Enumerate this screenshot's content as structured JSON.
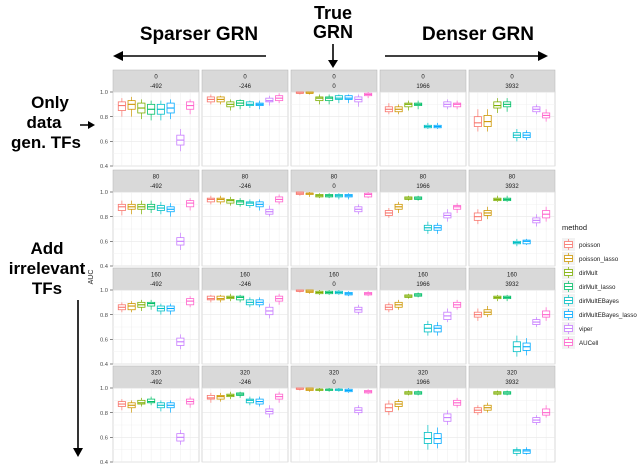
{
  "annotations": {
    "sparser": "Sparser GRN",
    "true_grn_line1": "True",
    "true_grn_line2": "GRN",
    "denser": "Denser GRN",
    "only_line1": "Only",
    "only_line2": "data",
    "only_line3": "gen. TFs",
    "add_line1": "Add",
    "add_line2": "irrelevant",
    "add_line3": "TFs"
  },
  "chart_data": {
    "type": "boxplot",
    "ylabel": "AUC",
    "ylim": [
      0.4,
      1.0
    ],
    "yticks": [
      0.4,
      0.6,
      0.8,
      1.0
    ],
    "ytick_labels": [
      "0.4",
      "0.6",
      "0.8",
      "1.0"
    ],
    "legend": {
      "title": "method",
      "placement": "right",
      "entries": [
        "poisson",
        "poisson_lasso",
        "dirMult",
        "dirMult_lasso",
        "dirMultEBayes",
        "dirMultEBayes_lasso",
        "viper",
        "AUCell"
      ]
    },
    "method_colors": [
      "#F8766D",
      "#CD9600",
      "#7CAE00",
      "#00BE67",
      "#00BFC4",
      "#00A9FF",
      "#C77CFF",
      "#FF61CC"
    ],
    "facet_rows": [
      "0",
      "80",
      "160",
      "320"
    ],
    "facet_cols": [
      "-492",
      "-246",
      "0",
      "1966",
      "3932"
    ],
    "panels": [
      [
        [
          [
            0.8,
            0.85,
            0.89,
            0.92,
            0.95
          ],
          [
            0.8,
            0.86,
            0.9,
            0.93,
            0.96
          ],
          [
            0.78,
            0.83,
            0.87,
            0.91,
            0.94
          ],
          [
            0.77,
            0.82,
            0.86,
            0.9,
            0.93
          ],
          [
            0.77,
            0.82,
            0.86,
            0.9,
            0.93
          ],
          [
            0.78,
            0.83,
            0.87,
            0.91,
            0.94
          ],
          [
            0.52,
            0.57,
            0.61,
            0.65,
            0.7
          ],
          [
            0.82,
            0.86,
            0.89,
            0.92,
            0.94
          ]
        ],
        [
          [
            0.9,
            0.92,
            0.94,
            0.96,
            0.98
          ],
          [
            0.9,
            0.92,
            0.94,
            0.96,
            0.97
          ],
          [
            0.85,
            0.88,
            0.9,
            0.92,
            0.94
          ],
          [
            0.86,
            0.89,
            0.91,
            0.93,
            0.94
          ],
          [
            0.87,
            0.89,
            0.9,
            0.92,
            0.93
          ],
          [
            0.86,
            0.89,
            0.9,
            0.91,
            0.93
          ],
          [
            0.89,
            0.92,
            0.93,
            0.95,
            0.97
          ],
          [
            0.91,
            0.93,
            0.95,
            0.97,
            0.99
          ]
        ],
        [
          [
            0.98,
            0.99,
            0.99,
            1.0,
            1.0
          ],
          [
            0.98,
            0.99,
            0.99,
            1.0,
            1.0
          ],
          [
            0.9,
            0.93,
            0.95,
            0.96,
            0.98
          ],
          [
            0.9,
            0.93,
            0.95,
            0.96,
            0.98
          ],
          [
            0.91,
            0.94,
            0.95,
            0.97,
            0.98
          ],
          [
            0.91,
            0.94,
            0.95,
            0.97,
            0.98
          ],
          [
            0.88,
            0.92,
            0.94,
            0.96,
            0.98
          ],
          [
            0.95,
            0.97,
            0.98,
            0.99,
            1.0
          ]
        ],
        [
          [
            0.82,
            0.84,
            0.86,
            0.88,
            0.91
          ],
          [
            0.82,
            0.84,
            0.86,
            0.88,
            0.9
          ],
          [
            0.85,
            0.88,
            0.9,
            0.91,
            0.93
          ],
          [
            0.86,
            0.89,
            0.9,
            0.91,
            0.93
          ],
          [
            0.7,
            0.71,
            0.72,
            0.73,
            0.75
          ],
          [
            0.7,
            0.71,
            0.72,
            0.73,
            0.75
          ],
          [
            0.86,
            0.88,
            0.9,
            0.92,
            0.94
          ],
          [
            0.86,
            0.88,
            0.9,
            0.91,
            0.93
          ]
        ],
        [
          [
            0.68,
            0.72,
            0.75,
            0.8,
            0.86
          ],
          [
            0.68,
            0.72,
            0.76,
            0.81,
            0.86
          ],
          [
            0.83,
            0.87,
            0.89,
            0.92,
            0.95
          ],
          [
            0.84,
            0.88,
            0.9,
            0.92,
            0.95
          ],
          [
            0.6,
            0.63,
            0.65,
            0.67,
            0.7
          ],
          [
            0.61,
            0.63,
            0.65,
            0.67,
            0.69
          ],
          [
            0.82,
            0.84,
            0.86,
            0.88,
            0.9
          ],
          [
            0.76,
            0.79,
            0.81,
            0.83,
            0.86
          ]
        ]
      ],
      [
        [
          [
            0.81,
            0.85,
            0.88,
            0.9,
            0.93
          ],
          [
            0.82,
            0.86,
            0.88,
            0.9,
            0.93
          ],
          [
            0.82,
            0.86,
            0.88,
            0.9,
            0.93
          ],
          [
            0.83,
            0.86,
            0.88,
            0.9,
            0.93
          ],
          [
            0.82,
            0.85,
            0.87,
            0.89,
            0.92
          ],
          [
            0.8,
            0.84,
            0.86,
            0.88,
            0.91
          ],
          [
            0.53,
            0.57,
            0.6,
            0.63,
            0.67
          ],
          [
            0.85,
            0.88,
            0.91,
            0.93,
            0.95
          ]
        ],
        [
          [
            0.9,
            0.92,
            0.94,
            0.95,
            0.97
          ],
          [
            0.9,
            0.92,
            0.94,
            0.95,
            0.97
          ],
          [
            0.89,
            0.91,
            0.93,
            0.94,
            0.96
          ],
          [
            0.88,
            0.9,
            0.92,
            0.93,
            0.95
          ],
          [
            0.87,
            0.89,
            0.91,
            0.92,
            0.94
          ],
          [
            0.85,
            0.88,
            0.9,
            0.92,
            0.94
          ],
          [
            0.8,
            0.82,
            0.84,
            0.86,
            0.89
          ],
          [
            0.9,
            0.92,
            0.94,
            0.96,
            0.98
          ]
        ],
        [
          [
            0.97,
            0.98,
            0.99,
            1.0,
            1.0
          ],
          [
            0.96,
            0.98,
            0.99,
            0.99,
            1.0
          ],
          [
            0.95,
            0.96,
            0.97,
            0.98,
            0.99
          ],
          [
            0.95,
            0.96,
            0.97,
            0.98,
            0.99
          ],
          [
            0.94,
            0.96,
            0.97,
            0.98,
            0.99
          ],
          [
            0.94,
            0.96,
            0.97,
            0.98,
            0.99
          ],
          [
            0.82,
            0.84,
            0.86,
            0.88,
            0.9
          ],
          [
            0.95,
            0.96,
            0.98,
            0.99,
            1.0
          ]
        ],
        [
          [
            0.79,
            0.81,
            0.83,
            0.85,
            0.87
          ],
          [
            0.83,
            0.86,
            0.88,
            0.9,
            0.92
          ],
          [
            0.93,
            0.94,
            0.95,
            0.96,
            0.97
          ],
          [
            0.93,
            0.94,
            0.95,
            0.96,
            0.97
          ],
          [
            0.66,
            0.69,
            0.71,
            0.73,
            0.76
          ],
          [
            0.66,
            0.69,
            0.71,
            0.73,
            0.75
          ],
          [
            0.76,
            0.79,
            0.81,
            0.83,
            0.86
          ],
          [
            0.83,
            0.86,
            0.88,
            0.89,
            0.91
          ]
        ],
        [
          [
            0.74,
            0.77,
            0.8,
            0.83,
            0.86
          ],
          [
            0.78,
            0.81,
            0.83,
            0.85,
            0.88
          ],
          [
            0.92,
            0.93,
            0.94,
            0.95,
            0.97
          ],
          [
            0.92,
            0.93,
            0.94,
            0.95,
            0.97
          ],
          [
            0.56,
            0.58,
            0.59,
            0.6,
            0.62
          ],
          [
            0.57,
            0.58,
            0.6,
            0.61,
            0.62
          ],
          [
            0.72,
            0.75,
            0.77,
            0.79,
            0.82
          ],
          [
            0.76,
            0.79,
            0.82,
            0.85,
            0.88
          ]
        ]
      ],
      [
        [
          [
            0.82,
            0.84,
            0.86,
            0.88,
            0.9
          ],
          [
            0.82,
            0.84,
            0.87,
            0.89,
            0.91
          ],
          [
            0.83,
            0.86,
            0.88,
            0.9,
            0.92
          ],
          [
            0.84,
            0.87,
            0.89,
            0.9,
            0.92
          ],
          [
            0.8,
            0.83,
            0.85,
            0.87,
            0.89
          ],
          [
            0.8,
            0.83,
            0.85,
            0.87,
            0.89
          ],
          [
            0.52,
            0.55,
            0.58,
            0.61,
            0.64
          ],
          [
            0.86,
            0.88,
            0.91,
            0.93,
            0.95
          ]
        ],
        [
          [
            0.9,
            0.92,
            0.93,
            0.95,
            0.96
          ],
          [
            0.9,
            0.92,
            0.93,
            0.95,
            0.96
          ],
          [
            0.91,
            0.93,
            0.94,
            0.95,
            0.97
          ],
          [
            0.9,
            0.92,
            0.94,
            0.95,
            0.96
          ],
          [
            0.86,
            0.88,
            0.9,
            0.92,
            0.94
          ],
          [
            0.86,
            0.88,
            0.9,
            0.92,
            0.94
          ],
          [
            0.77,
            0.8,
            0.83,
            0.86,
            0.89
          ],
          [
            0.88,
            0.91,
            0.93,
            0.95,
            0.97
          ]
        ],
        [
          [
            0.98,
            0.99,
            0.99,
            1.0,
            1.0
          ],
          [
            0.97,
            0.98,
            0.99,
            1.0,
            1.0
          ],
          [
            0.96,
            0.97,
            0.98,
            0.99,
            1.0
          ],
          [
            0.96,
            0.97,
            0.98,
            0.99,
            1.0
          ],
          [
            0.96,
            0.97,
            0.98,
            0.99,
            1.0
          ],
          [
            0.95,
            0.96,
            0.97,
            0.98,
            0.99
          ],
          [
            0.8,
            0.82,
            0.84,
            0.86,
            0.88
          ],
          [
            0.95,
            0.96,
            0.97,
            0.98,
            0.99
          ]
        ],
        [
          [
            0.82,
            0.84,
            0.86,
            0.88,
            0.9
          ],
          [
            0.84,
            0.86,
            0.88,
            0.9,
            0.92
          ],
          [
            0.93,
            0.94,
            0.95,
            0.96,
            0.97
          ],
          [
            0.94,
            0.95,
            0.96,
            0.97,
            0.98
          ],
          [
            0.63,
            0.66,
            0.69,
            0.72,
            0.75
          ],
          [
            0.63,
            0.66,
            0.69,
            0.71,
            0.74
          ],
          [
            0.74,
            0.76,
            0.79,
            0.82,
            0.85
          ],
          [
            0.84,
            0.86,
            0.88,
            0.9,
            0.92
          ]
        ],
        [
          [
            0.75,
            0.78,
            0.8,
            0.82,
            0.85
          ],
          [
            0.78,
            0.8,
            0.82,
            0.84,
            0.87
          ],
          [
            0.91,
            0.93,
            0.94,
            0.95,
            0.96
          ],
          [
            0.91,
            0.93,
            0.94,
            0.95,
            0.96
          ],
          [
            0.46,
            0.5,
            0.54,
            0.58,
            0.63
          ],
          [
            0.47,
            0.51,
            0.54,
            0.57,
            0.61
          ],
          [
            0.7,
            0.72,
            0.74,
            0.76,
            0.78
          ],
          [
            0.75,
            0.78,
            0.8,
            0.83,
            0.86
          ]
        ]
      ],
      [
        [
          [
            0.82,
            0.85,
            0.87,
            0.89,
            0.91
          ],
          [
            0.8,
            0.84,
            0.86,
            0.88,
            0.9
          ],
          [
            0.85,
            0.87,
            0.88,
            0.9,
            0.92
          ],
          [
            0.86,
            0.88,
            0.89,
            0.91,
            0.93
          ],
          [
            0.81,
            0.84,
            0.86,
            0.88,
            0.9
          ],
          [
            0.8,
            0.84,
            0.86,
            0.88,
            0.9
          ],
          [
            0.54,
            0.57,
            0.6,
            0.63,
            0.66
          ],
          [
            0.84,
            0.87,
            0.89,
            0.91,
            0.93
          ]
        ],
        [
          [
            0.88,
            0.91,
            0.92,
            0.94,
            0.96
          ],
          [
            0.89,
            0.91,
            0.93,
            0.94,
            0.96
          ],
          [
            0.91,
            0.93,
            0.94,
            0.95,
            0.97
          ],
          [
            0.92,
            0.94,
            0.95,
            0.96,
            0.97
          ],
          [
            0.86,
            0.88,
            0.9,
            0.91,
            0.93
          ],
          [
            0.85,
            0.87,
            0.89,
            0.91,
            0.93
          ],
          [
            0.76,
            0.79,
            0.81,
            0.83,
            0.86
          ],
          [
            0.88,
            0.91,
            0.93,
            0.95,
            0.97
          ]
        ],
        [
          [
            0.98,
            0.99,
            0.99,
            1.0,
            1.0
          ],
          [
            0.97,
            0.98,
            0.99,
            1.0,
            1.0
          ],
          [
            0.97,
            0.98,
            0.99,
            0.99,
            1.0
          ],
          [
            0.97,
            0.98,
            0.99,
            0.99,
            1.0
          ],
          [
            0.97,
            0.98,
            0.99,
            0.99,
            1.0
          ],
          [
            0.96,
            0.97,
            0.98,
            0.99,
            1.0
          ],
          [
            0.78,
            0.8,
            0.82,
            0.84,
            0.86
          ],
          [
            0.95,
            0.96,
            0.97,
            0.98,
            0.99
          ]
        ],
        [
          [
            0.78,
            0.81,
            0.84,
            0.87,
            0.9
          ],
          [
            0.82,
            0.85,
            0.87,
            0.89,
            0.91
          ],
          [
            0.94,
            0.95,
            0.96,
            0.97,
            0.98
          ],
          [
            0.94,
            0.95,
            0.96,
            0.97,
            0.98
          ],
          [
            0.5,
            0.55,
            0.59,
            0.64,
            0.7
          ],
          [
            0.51,
            0.55,
            0.59,
            0.63,
            0.68
          ],
          [
            0.7,
            0.73,
            0.76,
            0.79,
            0.82
          ],
          [
            0.84,
            0.86,
            0.88,
            0.9,
            0.92
          ]
        ],
        [
          [
            0.78,
            0.8,
            0.82,
            0.84,
            0.86
          ],
          [
            0.8,
            0.82,
            0.84,
            0.86,
            0.88
          ],
          [
            0.94,
            0.95,
            0.96,
            0.97,
            0.98
          ],
          [
            0.94,
            0.95,
            0.96,
            0.97,
            0.98
          ],
          [
            0.45,
            0.47,
            0.49,
            0.5,
            0.52
          ],
          [
            0.46,
            0.47,
            0.49,
            0.5,
            0.52
          ],
          [
            0.7,
            0.72,
            0.74,
            0.76,
            0.78
          ],
          [
            0.76,
            0.78,
            0.8,
            0.83,
            0.86
          ]
        ]
      ]
    ]
  }
}
